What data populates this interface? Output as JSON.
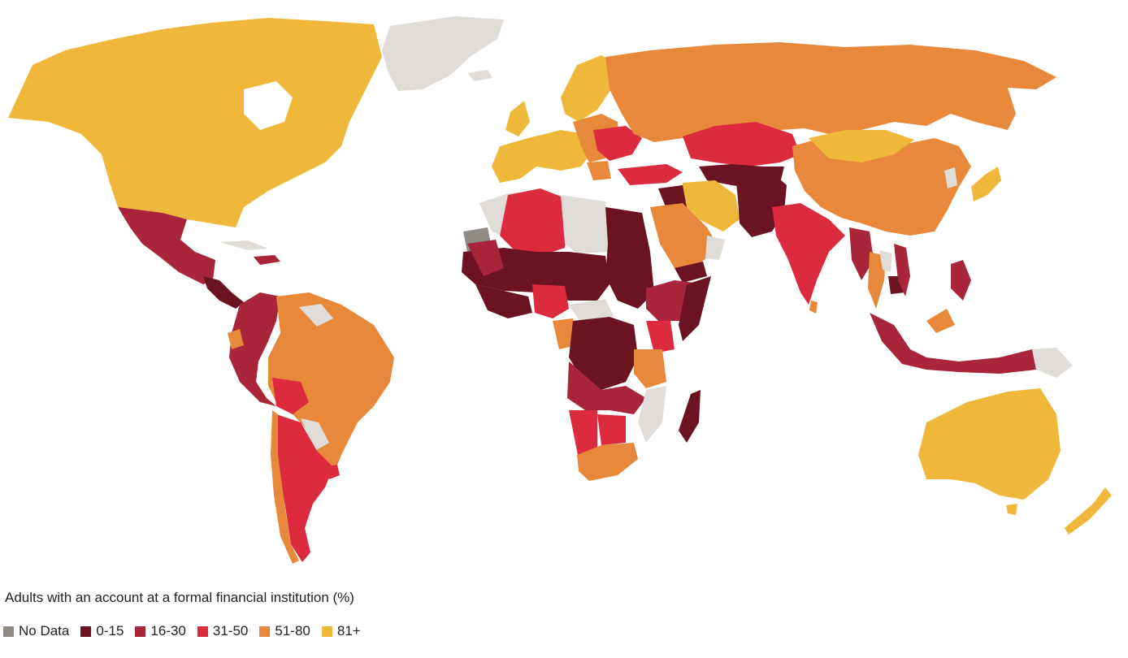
{
  "legend": {
    "title": "Adults with an account at a formal financial institution (%)",
    "items": [
      {
        "label": "No Data",
        "color": "#8f8a84"
      },
      {
        "label": "0-15",
        "color": "#6b1320"
      },
      {
        "label": "16-30",
        "color": "#a8253a"
      },
      {
        "label": "31-50",
        "color": "#dc2b3e"
      },
      {
        "label": "51-80",
        "color": "#e7883a"
      },
      {
        "label": "81+",
        "color": "#f0b83a"
      }
    ]
  },
  "colors": {
    "no_data": "#8f8a84",
    "not_covered": "#e0ddd9",
    "c0_15": "#6b1320",
    "c16_30": "#a8253a",
    "c31_50": "#dc2b3e",
    "c51_80": "#e7883a",
    "c81": "#f0b83a"
  }
}
